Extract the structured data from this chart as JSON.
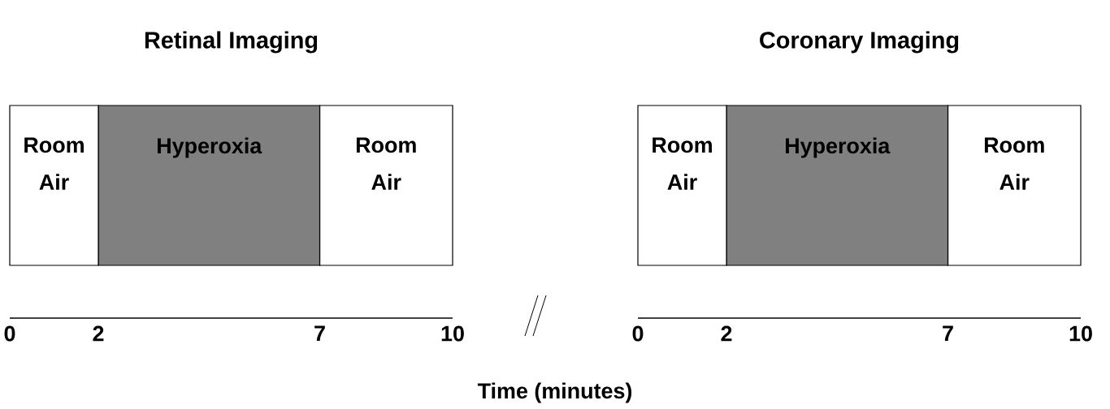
{
  "chart_data": [
    {
      "type": "bar",
      "orientation": "horizontal",
      "stacked": true,
      "title": "Retinal Imaging",
      "xlabel": "Time (minutes)",
      "categories": [
        null
      ],
      "xlim": [
        0,
        10
      ],
      "xticks": [
        0,
        2,
        7,
        10
      ],
      "series": [
        {
          "name": "Room Air",
          "color": "#ffffff",
          "values": [
            2
          ]
        },
        {
          "name": "Hyperoxia",
          "color": "#808080",
          "values": [
            5
          ]
        },
        {
          "name": "Room Air",
          "color": "#ffffff",
          "values": [
            3
          ]
        }
      ]
    },
    {
      "type": "bar",
      "orientation": "horizontal",
      "stacked": true,
      "title": "Coronary Imaging",
      "categories": [
        null
      ],
      "xlim": [
        0,
        10
      ],
      "xticks": [
        0,
        2,
        7,
        10
      ],
      "series": [
        {
          "name": "Room Air",
          "color": "#ffffff",
          "values": [
            2
          ]
        },
        {
          "name": "Hyperoxia",
          "color": "#808080",
          "values": [
            5
          ]
        },
        {
          "name": "Room Air",
          "color": "#ffffff",
          "values": [
            3
          ]
        }
      ]
    }
  ]
}
